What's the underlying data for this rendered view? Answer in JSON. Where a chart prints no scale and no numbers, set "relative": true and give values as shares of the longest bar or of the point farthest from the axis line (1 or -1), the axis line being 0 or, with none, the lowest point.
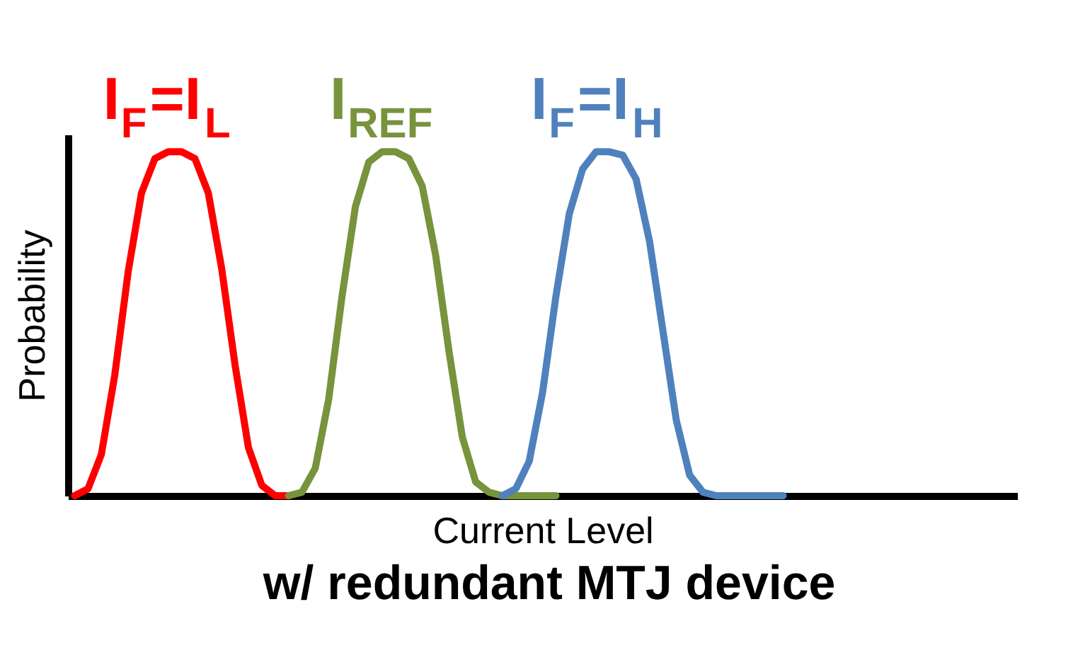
{
  "chart_data": {
    "type": "line",
    "relative": true,
    "title": "w/ redundant MTJ device",
    "xlabel": "Current Level",
    "ylabel": "Probability",
    "tick_labels": false,
    "grid": false,
    "legend": false,
    "line_style": "solid",
    "marker": "none",
    "categories": [
      null,
      null,
      null,
      null,
      null,
      null,
      null,
      null,
      null,
      null,
      null,
      null,
      null,
      null,
      null,
      null,
      null,
      null,
      null,
      null,
      null,
      null,
      null,
      null,
      null,
      null,
      null,
      null,
      null,
      null,
      null,
      null,
      null,
      null,
      null,
      null,
      null,
      null,
      null,
      null,
      null,
      null,
      null,
      null,
      null,
      null,
      null,
      null,
      null,
      null,
      null,
      null,
      null,
      null,
      null,
      null,
      null,
      null,
      null,
      null,
      null,
      null,
      null,
      null,
      null,
      null,
      null,
      null,
      null,
      null,
      null
    ],
    "series": [
      {
        "name": "I$_{F}$=I$_{L}$",
        "color": "#ff0000",
        "values": [
          0,
          0.02,
          0.12,
          0.35,
          0.65,
          0.88,
          0.98,
          1,
          1,
          0.98,
          0.88,
          0.66,
          0.38,
          0.14,
          0.03,
          0,
          0,
          null,
          null,
          null,
          null,
          null,
          null,
          null,
          null,
          null,
          null,
          null,
          null,
          null,
          null,
          null,
          null,
          null,
          null,
          null,
          null,
          null,
          null,
          null,
          null,
          null,
          null,
          null,
          null,
          null,
          null,
          null,
          null,
          null,
          null,
          null,
          null,
          null,
          null,
          null,
          null,
          null,
          null,
          null,
          null,
          null,
          null,
          null,
          null,
          null,
          null,
          null,
          null,
          null,
          null
        ]
      },
      {
        "name": "I$_{REF}$",
        "color": "#77933c",
        "values": [
          null,
          null,
          null,
          null,
          null,
          null,
          null,
          null,
          null,
          null,
          null,
          null,
          null,
          null,
          null,
          null,
          0,
          0.01,
          0.08,
          0.28,
          0.58,
          0.84,
          0.97,
          1,
          1,
          0.98,
          0.9,
          0.7,
          0.42,
          0.17,
          0.04,
          0.01,
          0,
          0,
          0,
          0,
          0,
          null,
          null,
          null,
          null,
          null,
          null,
          null,
          null,
          null,
          null,
          null,
          null,
          null,
          null,
          null,
          null,
          null,
          null,
          null,
          null,
          null,
          null,
          null,
          null,
          null,
          null,
          null,
          null,
          null,
          null,
          null,
          null,
          null,
          null
        ]
      },
      {
        "name": "I$_{F}$=I$_{H}$",
        "color": "#4f81bd",
        "values": [
          null,
          null,
          null,
          null,
          null,
          null,
          null,
          null,
          null,
          null,
          null,
          null,
          null,
          null,
          null,
          null,
          null,
          null,
          null,
          null,
          null,
          null,
          null,
          null,
          null,
          null,
          null,
          null,
          null,
          null,
          null,
          null,
          0,
          0.02,
          0.1,
          0.3,
          0.58,
          0.82,
          0.95,
          1,
          1,
          0.99,
          0.92,
          0.74,
          0.48,
          0.22,
          0.06,
          0.01,
          0,
          0,
          0,
          0,
          0,
          0,
          null,
          null,
          null,
          null,
          null,
          null,
          null,
          null,
          null,
          null,
          null,
          null,
          null,
          null,
          null,
          null,
          null
        ]
      }
    ]
  }
}
